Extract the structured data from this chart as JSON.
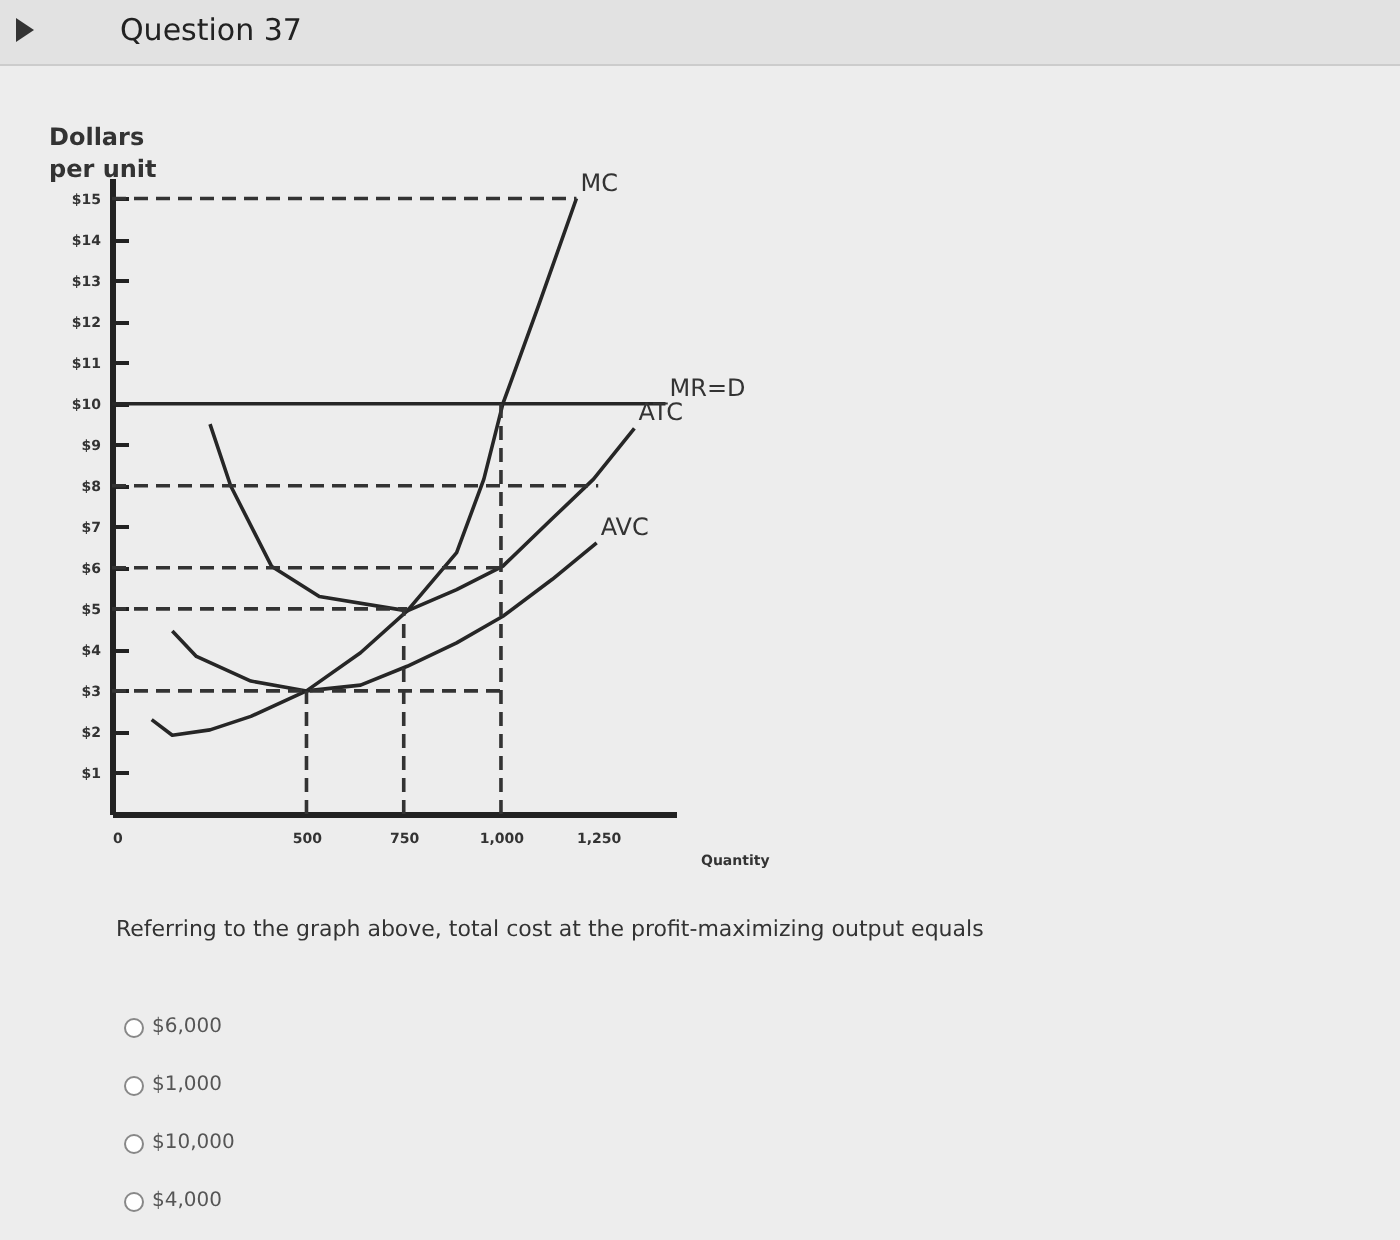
{
  "chart_data": {
    "type": "line",
    "title": "Question 37",
    "ylabel": "Dollars per unit",
    "xlabel": "Quantity",
    "xlim": [
      0,
      1450
    ],
    "ylim": [
      0,
      15.5
    ],
    "xticks": [
      {
        "value": 0,
        "label": "0"
      },
      500,
      750,
      {
        "value": 1000,
        "label": "1,000"
      },
      {
        "value": 1250,
        "label": "1,250"
      }
    ],
    "yticks": [
      {
        "value": 1,
        "label": "$1"
      },
      {
        "value": 2,
        "label": "$2"
      },
      {
        "value": 3,
        "label": "$3"
      },
      {
        "value": 4,
        "label": "$4"
      },
      {
        "value": 5,
        "label": "$5"
      },
      {
        "value": 6,
        "label": "$6"
      },
      {
        "value": 7,
        "label": "$7"
      },
      {
        "value": 8,
        "label": "$8"
      },
      {
        "value": 9,
        "label": "$9"
      },
      {
        "value": 10,
        "label": "$10"
      },
      {
        "value": 11,
        "label": "$11"
      },
      {
        "value": 12,
        "label": "$12"
      },
      {
        "value": 13,
        "label": "$13"
      },
      {
        "value": 14,
        "label": "$14"
      },
      {
        "value": 15,
        "label": "$15"
      }
    ],
    "marker": "none",
    "series": [
      {
        "name": "MC",
        "color": "#262626",
        "line_style": "solid",
        "x": [
          102,
          155,
          252,
          357,
          500,
          639,
          759,
          886,
          956,
          1005,
          1097,
          1194
        ],
        "values": [
          2.3,
          1.92,
          2.05,
          2.38,
          3,
          3.93,
          4.95,
          6.37,
          8.16,
          10,
          12.4,
          15
        ]
      },
      {
        "name": "ATC",
        "color": "#262626",
        "line_style": "solid",
        "x": [
          252,
          305,
          410,
          533,
          759,
          886,
          1005,
          1132,
          1238,
          1343
        ],
        "values": [
          9.5,
          8,
          6.04,
          5.3,
          4.95,
          5.47,
          6.04,
          7.2,
          8.16,
          9.4
        ]
      },
      {
        "name": "AVC",
        "color": "#262626",
        "line_style": "solid",
        "x": [
          155,
          217,
          357,
          500,
          639,
          759,
          886,
          1005,
          1132,
          1246
        ],
        "values": [
          4.46,
          3.84,
          3.24,
          3,
          3.14,
          3.6,
          4.17,
          4.82,
          5.72,
          6.61
        ]
      },
      {
        "name": "MR=D",
        "color": "#262626",
        "line_style": "solid",
        "x": [
          0,
          1423
        ],
        "values": [
          10,
          10
        ]
      },
      {
        "color": "#333333",
        "line_style": "dashed",
        "x": [
          0,
          1194
        ],
        "values": [
          15,
          15
        ]
      },
      {
        "color": "#333333",
        "line_style": "dashed",
        "x": [
          0,
          1250
        ],
        "values": [
          8,
          8
        ]
      },
      {
        "color": "#333333",
        "line_style": "dashed",
        "x": [
          0,
          1005
        ],
        "values": [
          6,
          6
        ]
      },
      {
        "color": "#333333",
        "line_style": "dashed",
        "x": [
          0,
          759
        ],
        "values": [
          5,
          5
        ]
      },
      {
        "color": "#333333",
        "line_style": "dashed",
        "x": [
          0,
          1005
        ],
        "values": [
          3,
          3
        ]
      },
      {
        "color": "#333333",
        "line_style": "dashed",
        "x": [
          500,
          500
        ],
        "values": [
          0,
          3
        ]
      },
      {
        "color": "#333333",
        "line_style": "dashed",
        "x": [
          750,
          750
        ],
        "values": [
          0,
          5
        ]
      },
      {
        "color": "#333333",
        "line_style": "dashed",
        "x": [
          1000,
          1000
        ],
        "values": [
          0,
          10
        ]
      }
    ],
    "annotations": [
      "Referring to the graph above, total cost at the profit-maximizing output equals",
      "$6,000",
      "$1,000",
      "$10,000",
      "$4,000"
    ]
  }
}
